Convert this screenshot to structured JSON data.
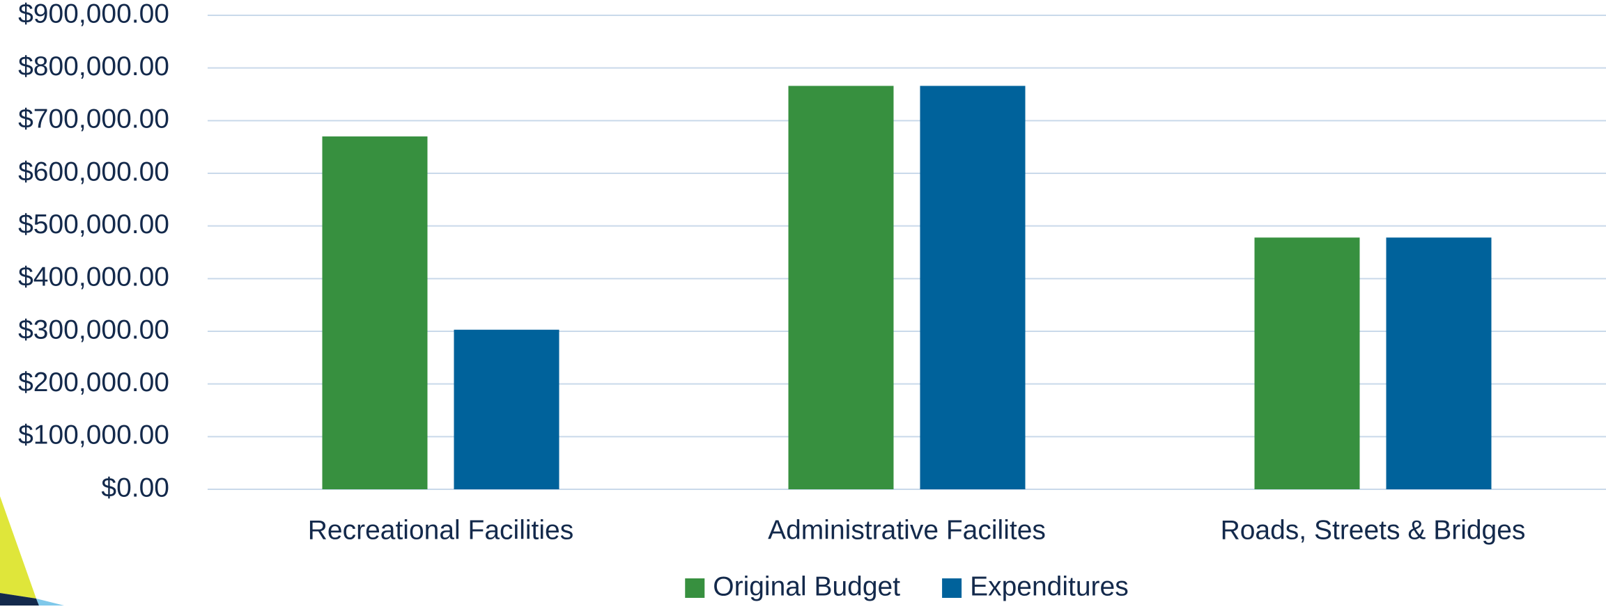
{
  "chart_data": {
    "type": "bar",
    "categories": [
      "Recreational Facilities",
      "Administrative Facilites",
      "Roads, Streets & Bridges"
    ],
    "series": [
      {
        "name": "Original Budget",
        "color": "#37903f",
        "values": [
          670000,
          766000,
          478000
        ]
      },
      {
        "name": "Expenditures",
        "color": "#00629b",
        "values": [
          303000,
          766000,
          478000
        ]
      }
    ],
    "ylim": [
      0,
      900000
    ],
    "yticks": [
      {
        "value": 0,
        "label": "$0.00"
      },
      {
        "value": 100000,
        "label": "$100,000.00"
      },
      {
        "value": 200000,
        "label": "$200,000.00"
      },
      {
        "value": 300000,
        "label": "$300,000.00"
      },
      {
        "value": 400000,
        "label": "$400,000.00"
      },
      {
        "value": 500000,
        "label": "$500,000.00"
      },
      {
        "value": 600000,
        "label": "$600,000.00"
      },
      {
        "value": 700000,
        "label": "$700,000.00"
      },
      {
        "value": 800000,
        "label": "$800,000.00"
      },
      {
        "value": 900000,
        "label": "$900,000.00"
      }
    ],
    "grid": true,
    "legend": "bottom"
  }
}
